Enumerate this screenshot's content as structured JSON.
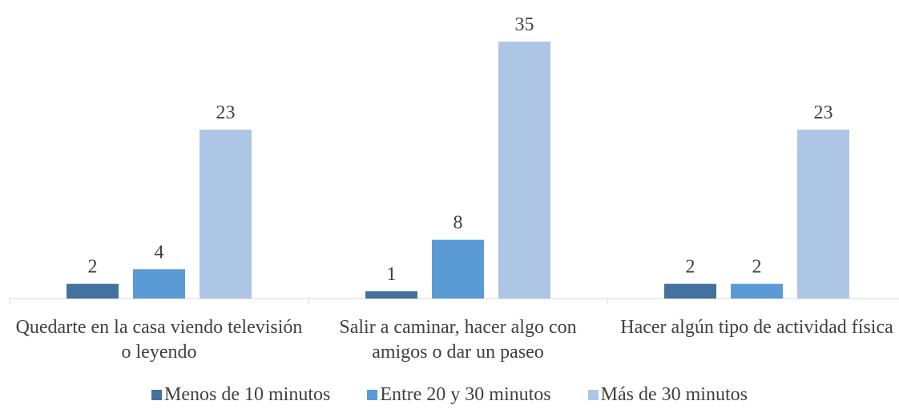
{
  "chart_data": {
    "type": "bar",
    "categories": [
      "Quedarte en la casa viendo televisión o leyendo",
      "Salir a caminar, hacer algo con amigos o dar un paseo",
      "Hacer algún tipo de actividad física"
    ],
    "series": [
      {
        "name": "Menos de 10 minutos",
        "color": "#44729e",
        "values": [
          2,
          1,
          2
        ]
      },
      {
        "name": "Entre 20 y 30 minutos",
        "color": "#5b9bd5",
        "values": [
          4,
          8,
          2
        ]
      },
      {
        "name": "Más de 30 minutos",
        "color": "#adc6e6",
        "values": [
          23,
          35,
          23
        ]
      }
    ],
    "legend": "bottom"
  }
}
